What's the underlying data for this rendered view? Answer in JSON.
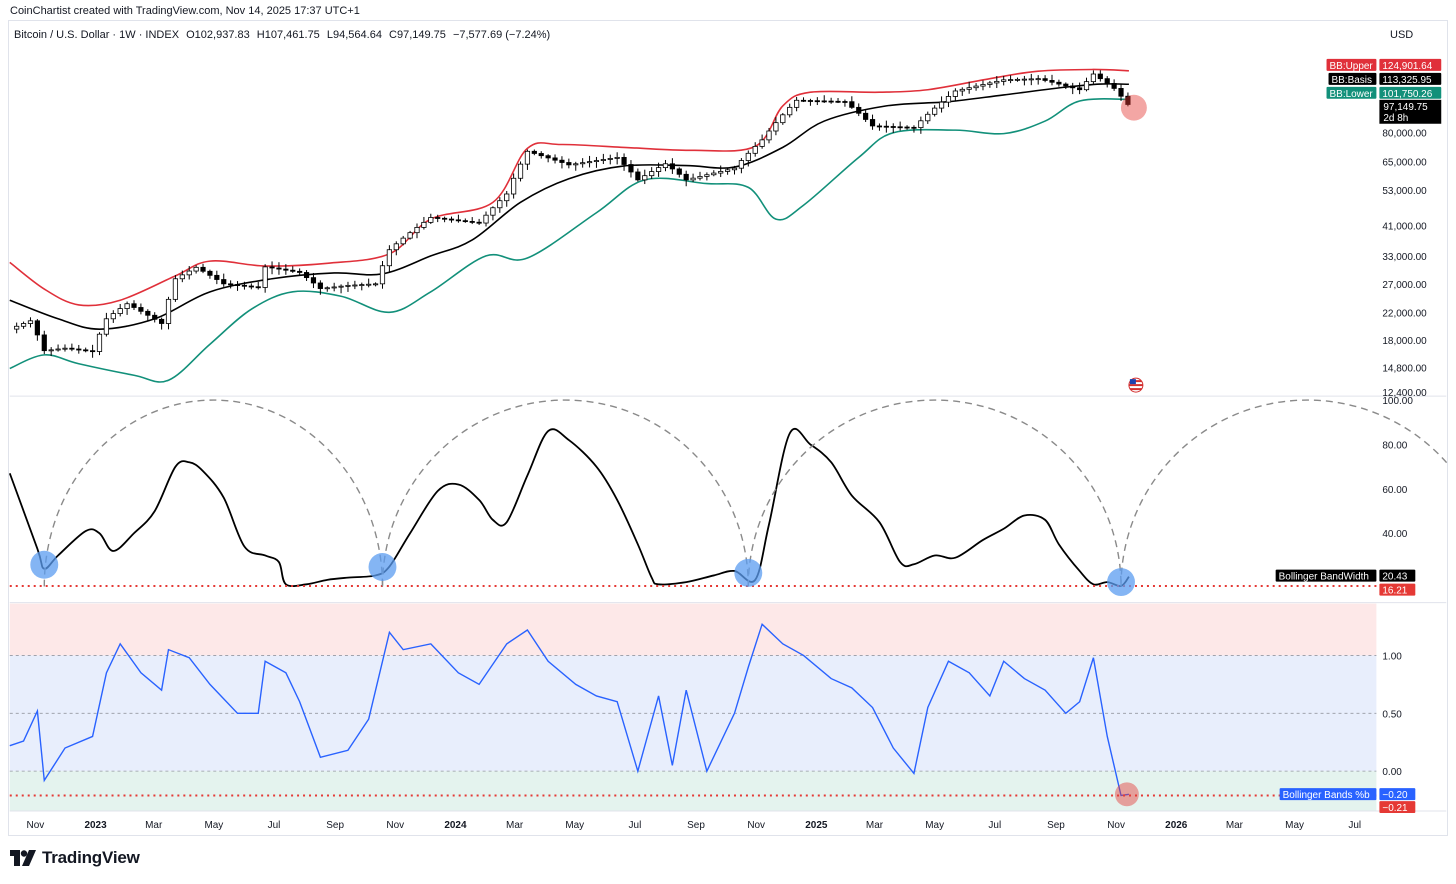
{
  "header": {
    "credit": "CoinChartist created with TradingView.com, Nov 14, 2025 17:37 UTC+1",
    "symbol": "Bitcoin / U.S. Dollar · 1W · INDEX",
    "open_label": "O",
    "open": "102,937.83",
    "high_label": "H",
    "high": "107,461.75",
    "low_label": "L",
    "low": "94,564.64",
    "close_label": "C",
    "close": "97,149.75",
    "change": "−7,577.69 (−7.24%)",
    "currency": "USD"
  },
  "colors": {
    "upper": "#e0303a",
    "basis": "#000000",
    "lower": "#12907a",
    "pctb": "#2962ff",
    "red_dot": "#e53935",
    "blue_circle": "#5b9cf0",
    "overbought_fill": "#fde8e8",
    "mid_fill": "#e8eefc",
    "oversold_fill": "#e4f3ee"
  },
  "price_labels": {
    "upper_name": "BB:Upper",
    "upper_value": "124,901.64",
    "basis_name": "BB:Basis",
    "basis_value": "113,325.95",
    "lower_name": "BB:Lower",
    "lower_value": "101,750.26",
    "last_price": "97,149.75",
    "countdown": "2d 8h"
  },
  "bandwidth_labels": {
    "name": "Bollinger BandWidth",
    "value": "20.43",
    "level": "16.21"
  },
  "pctb_labels": {
    "name": "Bollinger Bands %b",
    "value": "−0.20",
    "level": "−0.21"
  },
  "footer": {
    "brand": "TradingView",
    "logo_icon": "tradingview-logo-icon",
    "flag_icon": "us-flag-icon"
  },
  "chart_data": [
    {
      "type": "candlestick",
      "title": "Bitcoin / U.S. Dollar · 1W · INDEX",
      "scale": "log",
      "y_ticks": [
        12400,
        14800,
        18000,
        22000,
        27000,
        33000,
        41000,
        53000,
        65000,
        80000
      ],
      "y_tick_labels": [
        "12,400.00",
        "14,800.00",
        "18,000.00",
        "22,000.00",
        "27,000.00",
        "33,000.00",
        "41,000.00",
        "53,000.00",
        "65,000.00",
        "80,000.00"
      ],
      "x_range": [
        "2022-10-06",
        "2026-07-23"
      ],
      "x_ticks": [
        "2022-11-01",
        "2023-01-01",
        "2023-03-01",
        "2023-05-01",
        "2023-07-01",
        "2023-09-01",
        "2023-11-01",
        "2024-01-01",
        "2024-03-01",
        "2024-05-01",
        "2024-07-01",
        "2024-09-01",
        "2024-11-01",
        "2025-01-01",
        "2025-03-01",
        "2025-05-01",
        "2025-07-01",
        "2025-09-01",
        "2025-11-01",
        "2026-01-01",
        "2026-03-01",
        "2026-05-01",
        "2026-07-01"
      ],
      "x_tick_labels": [
        "Nov",
        "2023",
        "Mar",
        "May",
        "Jul",
        "Sep",
        "Nov",
        "2024",
        "Mar",
        "May",
        "Jul",
        "Sep",
        "Nov",
        "2025",
        "Mar",
        "May",
        "Jul",
        "Sep",
        "Nov",
        "2026",
        "Mar",
        "May",
        "Jul"
      ],
      "close_series": [
        [
          "2022-10-06",
          19500
        ],
        [
          "2022-10-27",
          20700
        ],
        [
          "2022-11-10",
          16700
        ],
        [
          "2022-12-01",
          17000
        ],
        [
          "2022-12-29",
          16600
        ],
        [
          "2023-01-12",
          21000
        ],
        [
          "2023-02-02",
          23400
        ],
        [
          "2023-03-09",
          20300
        ],
        [
          "2023-03-23",
          28000
        ],
        [
          "2023-04-13",
          30400
        ],
        [
          "2023-05-11",
          27000
        ],
        [
          "2023-06-15",
          26300
        ],
        [
          "2023-06-22",
          30500
        ],
        [
          "2023-07-27",
          29300
        ],
        [
          "2023-08-17",
          26100
        ],
        [
          "2023-09-14",
          26700
        ],
        [
          "2023-10-12",
          27000
        ],
        [
          "2023-10-26",
          34500
        ],
        [
          "2023-12-07",
          43500
        ],
        [
          "2024-01-25",
          41800
        ],
        [
          "2024-02-22",
          51500
        ],
        [
          "2024-03-14",
          70000
        ],
        [
          "2024-04-25",
          63500
        ],
        [
          "2024-06-13",
          67000
        ],
        [
          "2024-07-04",
          57000
        ],
        [
          "2024-08-01",
          64000
        ],
        [
          "2024-08-22",
          57000
        ],
        [
          "2024-10-10",
          62000
        ],
        [
          "2024-11-07",
          76000
        ],
        [
          "2024-12-12",
          101000
        ],
        [
          "2025-01-30",
          100000
        ],
        [
          "2025-02-27",
          84000
        ],
        [
          "2025-04-10",
          83000
        ],
        [
          "2025-05-22",
          108000
        ],
        [
          "2025-07-10",
          117000
        ],
        [
          "2025-08-14",
          118000
        ],
        [
          "2025-09-25",
          109000
        ],
        [
          "2025-10-09",
          122000
        ],
        [
          "2025-10-30",
          110000
        ],
        [
          "2025-11-14",
          97149.75
        ]
      ],
      "bb_upper": [
        [
          "2022-10-06",
          31500
        ],
        [
          "2022-11-10",
          26000
        ],
        [
          "2022-12-15",
          23200
        ],
        [
          "2023-01-26",
          24000
        ],
        [
          "2023-03-23",
          28600
        ],
        [
          "2023-04-27",
          31800
        ],
        [
          "2023-06-22",
          30700
        ],
        [
          "2023-08-24",
          31300
        ],
        [
          "2023-10-26",
          33500
        ],
        [
          "2023-12-07",
          43000
        ],
        [
          "2024-02-08",
          48500
        ],
        [
          "2024-03-14",
          71500
        ],
        [
          "2024-04-18",
          73500
        ],
        [
          "2024-06-27",
          71800
        ],
        [
          "2024-08-29",
          70500
        ],
        [
          "2024-10-31",
          72500
        ],
        [
          "2024-11-28",
          97000
        ],
        [
          "2024-12-26",
          107000
        ],
        [
          "2025-03-06",
          107000
        ],
        [
          "2025-04-24",
          109000
        ],
        [
          "2025-06-26",
          118000
        ],
        [
          "2025-08-14",
          124500
        ],
        [
          "2025-10-09",
          126000
        ],
        [
          "2025-11-14",
          124901.64
        ]
      ],
      "bb_basis": [
        [
          "2022-10-06",
          24000
        ],
        [
          "2022-11-24",
          21000
        ],
        [
          "2023-01-05",
          19500
        ],
        [
          "2023-03-02",
          21000
        ],
        [
          "2023-04-27",
          25500
        ],
        [
          "2023-06-29",
          28000
        ],
        [
          "2023-08-31",
          29200
        ],
        [
          "2023-10-19",
          29000
        ],
        [
          "2023-12-07",
          33000
        ],
        [
          "2024-01-18",
          37000
        ],
        [
          "2024-03-07",
          48500
        ],
        [
          "2024-04-25",
          57500
        ],
        [
          "2024-06-20",
          63000
        ],
        [
          "2024-08-22",
          63200
        ],
        [
          "2024-10-10",
          62500
        ],
        [
          "2024-11-28",
          72000
        ],
        [
          "2025-01-09",
          87000
        ],
        [
          "2025-03-13",
          97000
        ],
        [
          "2025-05-15",
          100000
        ],
        [
          "2025-07-10",
          105000
        ],
        [
          "2025-09-11",
          111000
        ],
        [
          "2025-10-16",
          113500
        ],
        [
          "2025-11-14",
          113325.95
        ]
      ],
      "bb_lower": [
        [
          "2022-10-06",
          14700
        ],
        [
          "2022-11-10",
          16200
        ],
        [
          "2022-12-15",
          15200
        ],
        [
          "2023-02-09",
          14000
        ],
        [
          "2023-03-16",
          13500
        ],
        [
          "2023-04-27",
          17500
        ],
        [
          "2023-06-08",
          22500
        ],
        [
          "2023-07-20",
          25500
        ],
        [
          "2023-09-07",
          24700
        ],
        [
          "2023-10-26",
          22000
        ],
        [
          "2023-12-07",
          25500
        ],
        [
          "2024-02-01",
          33000
        ],
        [
          "2024-03-14",
          32500
        ],
        [
          "2024-05-23",
          45000
        ],
        [
          "2024-07-11",
          57000
        ],
        [
          "2024-09-12",
          55500
        ],
        [
          "2024-10-24",
          54000
        ],
        [
          "2024-11-21",
          43000
        ],
        [
          "2024-12-19",
          47500
        ],
        [
          "2025-02-13",
          67000
        ],
        [
          "2025-03-20",
          80000
        ],
        [
          "2025-05-22",
          81500
        ],
        [
          "2025-07-10",
          79500
        ],
        [
          "2025-08-21",
          87000
        ],
        [
          "2025-09-25",
          100500
        ],
        [
          "2025-11-14",
          101750.26
        ]
      ]
    },
    {
      "type": "line",
      "title": "Bollinger BandWidth",
      "y_ticks": [
        40,
        60,
        80,
        100
      ],
      "y_tick_labels": [
        "40.00",
        "60.00",
        "80.00",
        "100.00"
      ],
      "reference_level": 16.21,
      "series": [
        {
          "name": "Bollinger BandWidth",
          "points": [
            [
              "2022-10-06",
              67
            ],
            [
              "2022-11-03",
              33
            ],
            [
              "2022-11-10",
              24
            ],
            [
              "2022-11-24",
              30
            ],
            [
              "2022-12-22",
              41
            ],
            [
              "2023-01-05",
              40
            ],
            [
              "2023-01-19",
              32
            ],
            [
              "2023-02-09",
              40
            ],
            [
              "2023-03-02",
              50
            ],
            [
              "2023-03-23",
              70
            ],
            [
              "2023-04-06",
              72
            ],
            [
              "2023-04-20",
              68
            ],
            [
              "2023-05-11",
              56
            ],
            [
              "2023-06-01",
              34
            ],
            [
              "2023-06-22",
              30
            ],
            [
              "2023-07-06",
              27
            ],
            [
              "2023-07-13",
              17
            ],
            [
              "2023-08-03",
              17
            ],
            [
              "2023-08-24",
              19
            ],
            [
              "2023-09-14",
              20
            ],
            [
              "2023-10-12",
              21
            ],
            [
              "2023-10-26",
              25
            ],
            [
              "2023-11-16",
              40
            ],
            [
              "2023-12-14",
              59
            ],
            [
              "2024-01-04",
              62
            ],
            [
              "2024-01-25",
              55
            ],
            [
              "2024-02-08",
              46
            ],
            [
              "2024-02-22",
              45
            ],
            [
              "2024-03-14",
              66
            ],
            [
              "2024-04-04",
              86
            ],
            [
              "2024-04-25",
              82
            ],
            [
              "2024-05-23",
              70
            ],
            [
              "2024-06-13",
              55
            ],
            [
              "2024-07-04",
              35
            ],
            [
              "2024-07-18",
              20
            ],
            [
              "2024-07-25",
              17
            ],
            [
              "2024-08-22",
              18
            ],
            [
              "2024-09-19",
              21
            ],
            [
              "2024-10-10",
              23
            ],
            [
              "2024-10-31",
              19
            ],
            [
              "2024-11-14",
              44
            ],
            [
              "2024-12-05",
              85
            ],
            [
              "2024-12-26",
              80
            ],
            [
              "2025-01-16",
              72
            ],
            [
              "2025-02-06",
              57
            ],
            [
              "2025-03-06",
              45
            ],
            [
              "2025-03-27",
              27
            ],
            [
              "2025-04-10",
              26
            ],
            [
              "2025-05-01",
              30
            ],
            [
              "2025-05-22",
              29
            ],
            [
              "2025-06-19",
              37
            ],
            [
              "2025-07-10",
              42
            ],
            [
              "2025-07-31",
              48
            ],
            [
              "2025-08-21",
              46
            ],
            [
              "2025-09-04",
              35
            ],
            [
              "2025-09-25",
              23
            ],
            [
              "2025-10-09",
              17
            ],
            [
              "2025-10-23",
              18
            ],
            [
              "2025-11-06",
              16.21
            ],
            [
              "2025-11-14",
              20.43
            ]
          ]
        }
      ]
    },
    {
      "type": "line",
      "title": "Bollinger Bands %b",
      "y_ticks": [
        0,
        0.5,
        1.0
      ],
      "y_tick_labels": [
        "0.00",
        "0.50",
        "1.00"
      ],
      "reference_level": -0.21,
      "series": [
        {
          "name": "Bollinger Bands %b",
          "points": [
            [
              "2022-10-06",
              0.22
            ],
            [
              "2022-10-20",
              0.26
            ],
            [
              "2022-11-03",
              0.52
            ],
            [
              "2022-11-10",
              -0.08
            ],
            [
              "2022-12-01",
              0.2
            ],
            [
              "2022-12-29",
              0.3
            ],
            [
              "2023-01-12",
              0.85
            ],
            [
              "2023-01-26",
              1.1
            ],
            [
              "2023-02-16",
              0.85
            ],
            [
              "2023-03-09",
              0.7
            ],
            [
              "2023-03-16",
              1.05
            ],
            [
              "2023-04-06",
              0.98
            ],
            [
              "2023-04-27",
              0.75
            ],
            [
              "2023-05-25",
              0.5
            ],
            [
              "2023-06-15",
              0.5
            ],
            [
              "2023-06-22",
              0.95
            ],
            [
              "2023-07-13",
              0.85
            ],
            [
              "2023-07-27",
              0.6
            ],
            [
              "2023-08-17",
              0.12
            ],
            [
              "2023-09-14",
              0.18
            ],
            [
              "2023-10-05",
              0.45
            ],
            [
              "2023-10-26",
              1.2
            ],
            [
              "2023-11-09",
              1.05
            ],
            [
              "2023-12-07",
              1.1
            ],
            [
              "2024-01-04",
              0.85
            ],
            [
              "2024-01-25",
              0.75
            ],
            [
              "2024-02-22",
              1.1
            ],
            [
              "2024-03-14",
              1.22
            ],
            [
              "2024-04-04",
              0.95
            ],
            [
              "2024-05-02",
              0.75
            ],
            [
              "2024-05-23",
              0.65
            ],
            [
              "2024-06-13",
              0.6
            ],
            [
              "2024-07-04",
              0.0
            ],
            [
              "2024-07-25",
              0.65
            ],
            [
              "2024-08-08",
              0.05
            ],
            [
              "2024-08-22",
              0.7
            ],
            [
              "2024-09-12",
              0.0
            ],
            [
              "2024-10-10",
              0.5
            ],
            [
              "2024-10-24",
              0.9
            ],
            [
              "2024-11-07",
              1.27
            ],
            [
              "2024-11-28",
              1.1
            ],
            [
              "2024-12-19",
              1.0
            ],
            [
              "2025-01-16",
              0.8
            ],
            [
              "2025-02-06",
              0.72
            ],
            [
              "2025-02-27",
              0.55
            ],
            [
              "2025-03-20",
              0.2
            ],
            [
              "2025-04-10",
              -0.02
            ],
            [
              "2025-04-24",
              0.55
            ],
            [
              "2025-05-15",
              0.95
            ],
            [
              "2025-06-05",
              0.85
            ],
            [
              "2025-06-26",
              0.65
            ],
            [
              "2025-07-10",
              0.95
            ],
            [
              "2025-07-31",
              0.8
            ],
            [
              "2025-08-21",
              0.7
            ],
            [
              "2025-09-11",
              0.5
            ],
            [
              "2025-09-25",
              0.6
            ],
            [
              "2025-10-09",
              0.98
            ],
            [
              "2025-10-23",
              0.3
            ],
            [
              "2025-11-06",
              -0.21
            ],
            [
              "2025-11-14",
              -0.2
            ]
          ]
        }
      ]
    }
  ]
}
